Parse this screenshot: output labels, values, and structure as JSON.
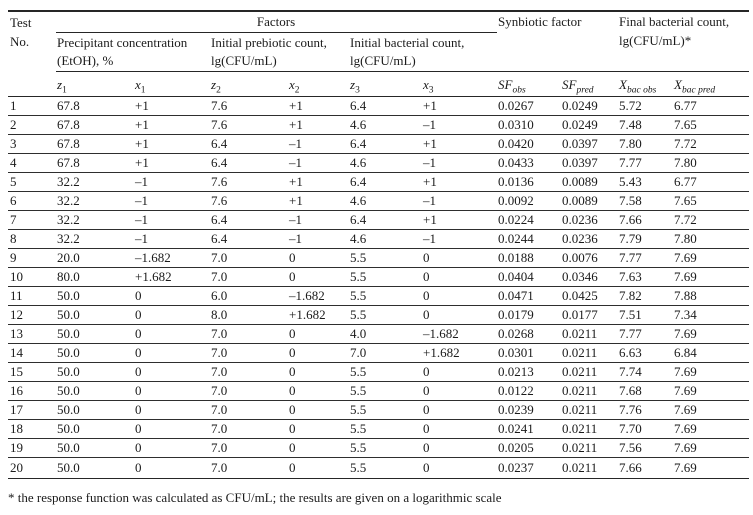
{
  "table": {
    "header": {
      "test": {
        "line1": "Test",
        "line2": "No."
      },
      "factors": "Factors",
      "synbiotic": "Synbiotic factor",
      "final": "Final bacterial count, lg(CFU/mL)*",
      "groups": [
        "Precipitant concentration (EtOH), %",
        "Initial prebiotic count, lg(CFU/mL)",
        "Initial bacterial count, lg(CFU/mL)"
      ],
      "columns": [
        {
          "base": "z",
          "sub": "1"
        },
        {
          "base": "x",
          "sub": "1"
        },
        {
          "base": "z",
          "sub": "2"
        },
        {
          "base": "x",
          "sub": "2"
        },
        {
          "base": "z",
          "sub": "3"
        },
        {
          "base": "x",
          "sub": "3"
        },
        {
          "base": "SF",
          "sub": "obs"
        },
        {
          "base": "SF",
          "sub": "pred"
        },
        {
          "base": "X",
          "sub": "bac obs"
        },
        {
          "base": "X",
          "sub": "bac pred"
        }
      ]
    },
    "rows": [
      [
        "1",
        "67.8",
        "+1",
        "7.6",
        "+1",
        "6.4",
        "+1",
        "0.0267",
        "0.0249",
        "5.72",
        "6.77"
      ],
      [
        "2",
        "67.8",
        "+1",
        "7.6",
        "+1",
        "4.6",
        "–1",
        "0.0310",
        "0.0249",
        "7.48",
        "7.65"
      ],
      [
        "3",
        "67.8",
        "+1",
        "6.4",
        "–1",
        "6.4",
        "+1",
        "0.0420",
        "0.0397",
        "7.80",
        "7.72"
      ],
      [
        "4",
        "67.8",
        "+1",
        "6.4",
        "–1",
        "4.6",
        "–1",
        "0.0433",
        "0.0397",
        "7.77",
        "7.80"
      ],
      [
        "5",
        "32.2",
        "–1",
        "7.6",
        "+1",
        "6.4",
        "+1",
        "0.0136",
        "0.0089",
        "5.43",
        "6.77"
      ],
      [
        "6",
        "32.2",
        "–1",
        "7.6",
        "+1",
        "4.6",
        "–1",
        "0.0092",
        "0.0089",
        "7.58",
        "7.65"
      ],
      [
        "7",
        "32.2",
        "–1",
        "6.4",
        "–1",
        "6.4",
        "+1",
        "0.0224",
        "0.0236",
        "7.66",
        "7.72"
      ],
      [
        "8",
        "32.2",
        "–1",
        "6.4",
        "–1",
        "4.6",
        "–1",
        "0.0244",
        "0.0236",
        "7.79",
        "7.80"
      ],
      [
        "9",
        "20.0",
        "–1.682",
        "7.0",
        "0",
        "5.5",
        "0",
        "0.0188",
        "0.0076",
        "7.77",
        "7.69"
      ],
      [
        "10",
        "80.0",
        "+1.682",
        "7.0",
        "0",
        "5.5",
        "0",
        "0.0404",
        "0.0346",
        "7.63",
        "7.69"
      ],
      [
        "11",
        "50.0",
        "0",
        "6.0",
        "–1.682",
        "5.5",
        "0",
        "0.0471",
        "0.0425",
        "7.82",
        "7.88"
      ],
      [
        "12",
        "50.0",
        "0",
        "8.0",
        "+1.682",
        "5.5",
        "0",
        "0.0179",
        "0.0177",
        "7.51",
        "7.34"
      ],
      [
        "13",
        "50.0",
        "0",
        "7.0",
        "0",
        "4.0",
        "–1.682",
        "0.0268",
        "0.0211",
        "7.77",
        "7.69"
      ],
      [
        "14",
        "50.0",
        "0",
        "7.0",
        "0",
        "7.0",
        "+1.682",
        "0.0301",
        "0.0211",
        "6.63",
        "6.84"
      ],
      [
        "15",
        "50.0",
        "0",
        "7.0",
        "0",
        "5.5",
        "0",
        "0.0213",
        "0.0211",
        "7.74",
        "7.69"
      ],
      [
        "16",
        "50.0",
        "0",
        "7.0",
        "0",
        "5.5",
        "0",
        "0.0122",
        "0.0211",
        "7.68",
        "7.69"
      ],
      [
        "17",
        "50.0",
        "0",
        "7.0",
        "0",
        "5.5",
        "0",
        "0.0239",
        "0.0211",
        "7.76",
        "7.69"
      ],
      [
        "18",
        "50.0",
        "0",
        "7.0",
        "0",
        "5.5",
        "0",
        "0.0241",
        "0.0211",
        "7.70",
        "7.69"
      ],
      [
        "19",
        "50.0",
        "0",
        "7.0",
        "0",
        "5.5",
        "0",
        "0.0205",
        "0.0211",
        "7.56",
        "7.69"
      ],
      [
        "20",
        "50.0",
        "0",
        "7.0",
        "0",
        "5.5",
        "0",
        "0.0237",
        "0.0211",
        "7.66",
        "7.69"
      ]
    ]
  },
  "footnote": "* the response function was calculated as CFU/mL; the results are given on a logarithmic scale"
}
